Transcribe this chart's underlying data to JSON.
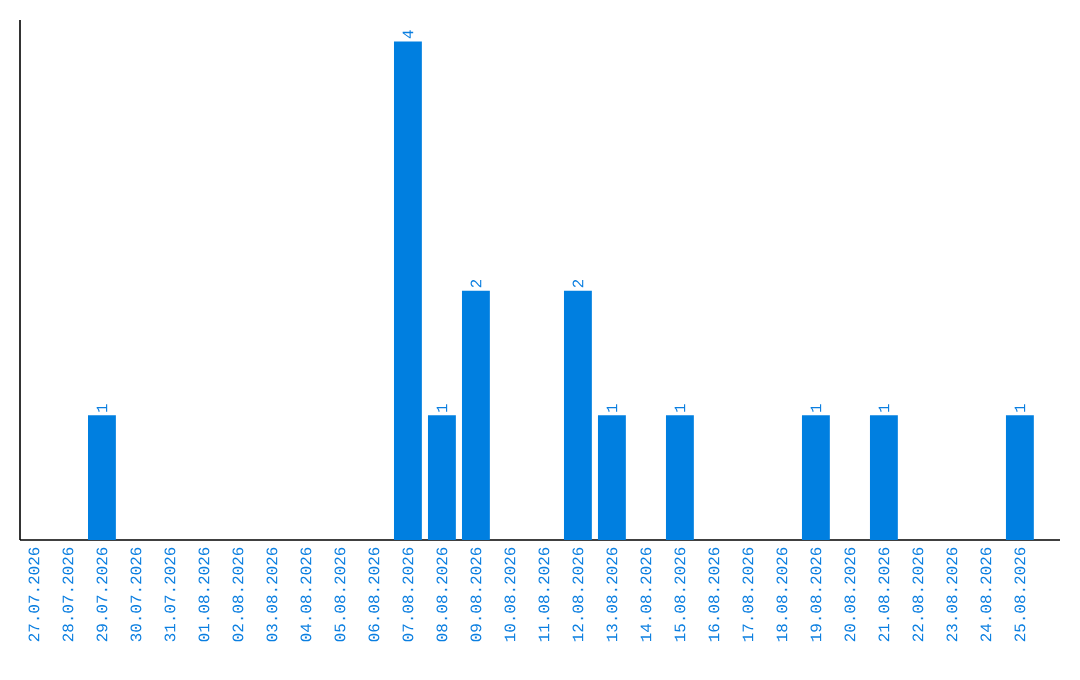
{
  "chart_data": {
    "type": "bar",
    "categories": [
      "27.07.2026",
      "28.07.2026",
      "29.07.2026",
      "30.07.2026",
      "31.07.2026",
      "01.08.2026",
      "02.08.2026",
      "03.08.2026",
      "04.08.2026",
      "05.08.2026",
      "06.08.2026",
      "07.08.2026",
      "08.08.2026",
      "09.08.2026",
      "10.08.2026",
      "11.08.2026",
      "12.08.2026",
      "13.08.2026",
      "14.08.2026",
      "15.08.2026",
      "16.08.2026",
      "17.08.2026",
      "18.08.2026",
      "19.08.2026",
      "20.08.2026",
      "21.08.2026",
      "22.08.2026",
      "23.08.2026",
      "24.08.2026",
      "25.08.2026"
    ],
    "values": [
      0,
      0,
      1,
      0,
      0,
      0,
      0,
      0,
      0,
      0,
      0,
      4,
      1,
      2,
      0,
      0,
      2,
      1,
      0,
      1,
      0,
      0,
      0,
      1,
      0,
      1,
      0,
      0,
      0,
      1
    ],
    "value_labels": [
      null,
      null,
      "1",
      null,
      null,
      null,
      null,
      null,
      null,
      null,
      null,
      "4",
      "1",
      "2",
      null,
      null,
      "2",
      "1",
      null,
      "1",
      null,
      null,
      null,
      "1",
      null,
      "1",
      null,
      null,
      null,
      "1"
    ],
    "color": "#007fe0"
  }
}
